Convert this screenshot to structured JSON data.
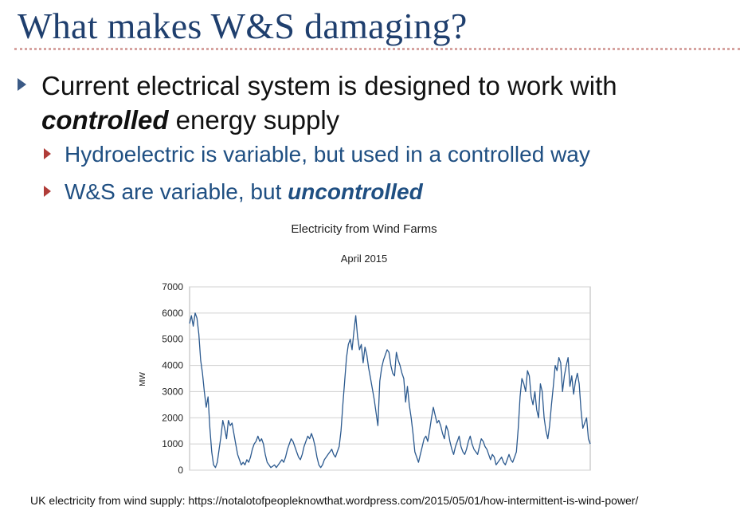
{
  "slide": {
    "title": "What makes W&S damaging?",
    "bullet1": {
      "line1": "Current electrical system is designed to work with",
      "emphasis": "controlled",
      "line2_rest": " energy supply"
    },
    "sub1": "Hydroelectric is variable, but used in a controlled way",
    "sub2": {
      "prefix": "W&S are variable, but ",
      "emphasis": "uncontrolled"
    },
    "footer": "UK electricity from wind supply: https://notalotofpeopleknowthat.wordpress.com/2015/05/01/how-intermittent-is-wind-power/"
  },
  "colors": {
    "title": "#1f3f6e",
    "sub_text": "#1f4f82",
    "line": "#2c5a8f",
    "grid": "#d0d0d0"
  },
  "chart_data": {
    "type": "line",
    "title": "Electricity from Wind Farms",
    "subtitle": "April 2015",
    "ylabel": "MW",
    "xlabel": "",
    "ylim": [
      0,
      7000
    ],
    "yticks": [
      0,
      1000,
      2000,
      3000,
      4000,
      5000,
      6000,
      7000
    ],
    "grid": true,
    "series": [
      {
        "values": [
          5600,
          5900,
          5500,
          6000,
          5800,
          5200,
          4200,
          3700,
          3000,
          2400,
          2800,
          1600,
          700,
          200,
          100,
          300,
          800,
          1300,
          1900,
          1600,
          1200,
          1900,
          1700,
          1800,
          1400,
          1000,
          600,
          400,
          200,
          300,
          200,
          400,
          300,
          500,
          800,
          1000,
          1100,
          1300,
          1100,
          1200,
          1000,
          600,
          300,
          200,
          100,
          150,
          200,
          100,
          200,
          300,
          400,
          300,
          500,
          800,
          1000,
          1200,
          1100,
          900,
          700,
          500,
          400,
          600,
          900,
          1100,
          1300,
          1200,
          1400,
          1200,
          900,
          500,
          200,
          100,
          200,
          400,
          500,
          600,
          700,
          800,
          600,
          500,
          700,
          900,
          1500,
          2500,
          3400,
          4300,
          4800,
          5000,
          4600,
          5300,
          5900,
          5100,
          4600,
          4800,
          4100,
          4700,
          4400,
          3900,
          3500,
          3100,
          2700,
          2200,
          1700,
          3400,
          3900,
          4200,
          4400,
          4600,
          4500,
          4000,
          3700,
          3600,
          4500,
          4200,
          4000,
          3700,
          3500,
          2600,
          3200,
          2500,
          2000,
          1400,
          700,
          500,
          300,
          600,
          900,
          1200,
          1300,
          1100,
          1500,
          2000,
          2400,
          2100,
          1800,
          1900,
          1700,
          1400,
          1200,
          1700,
          1500,
          1100,
          800,
          600,
          900,
          1100,
          1300,
          900,
          700,
          600,
          800,
          1100,
          1300,
          1000,
          800,
          700,
          600,
          900,
          1200,
          1100,
          900,
          800,
          600,
          400,
          600,
          500,
          200,
          300,
          400,
          500,
          300,
          200,
          400,
          600,
          400,
          300,
          500,
          700,
          1600,
          2800,
          3500,
          3300,
          3000,
          3800,
          3600,
          2800,
          2500,
          3000,
          2300,
          2000,
          3300,
          3000,
          2000,
          1500,
          1200,
          1700,
          2500,
          3200,
          4000,
          3800,
          4300,
          4100,
          3000,
          3600,
          4000,
          4300,
          3200,
          3600,
          2900,
          3400,
          3700,
          3300,
          2300,
          1600,
          1800,
          2000,
          1200,
          1000
        ]
      }
    ]
  }
}
